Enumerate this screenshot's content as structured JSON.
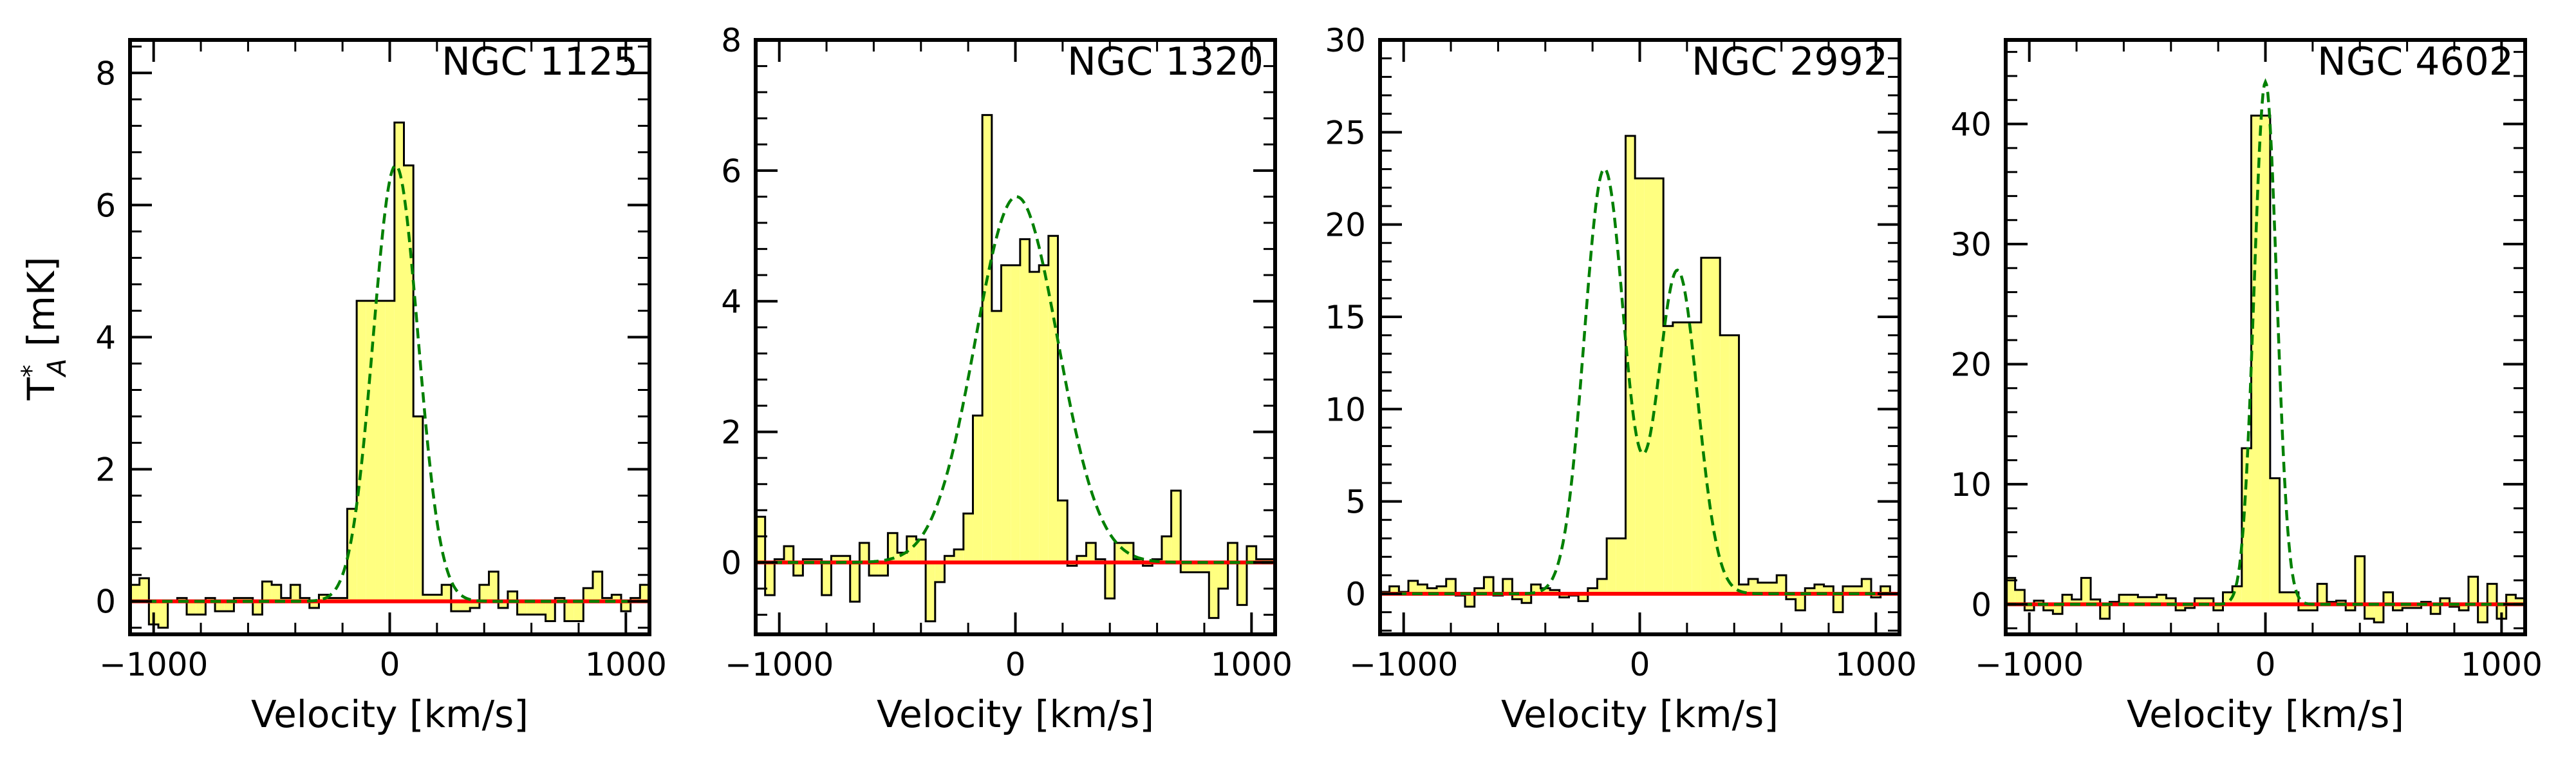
{
  "figure": {
    "ylabel_main": "T",
    "ylabel_sup": "*",
    "ylabel_sub": "A",
    "ylabel_unit": " [mK]"
  },
  "colors": {
    "fill": "#ffff80",
    "edge": "#000000",
    "fit": "#008000",
    "baseline": "#ff0000"
  },
  "chart_data": [
    {
      "type": "step-histogram",
      "title": "NGC 1125",
      "xlabel": "Velocity [km/s]",
      "xlim": [
        -1100,
        1100
      ],
      "ylim": [
        -0.5,
        8.5
      ],
      "xticks": [
        -1000,
        0,
        1000
      ],
      "xtick_labels": [
        "−1000",
        "0",
        "1000"
      ],
      "yticks": [
        0,
        2,
        4,
        6,
        8
      ],
      "ytick_labels": [
        "0",
        "2",
        "4",
        "6",
        "8"
      ],
      "bin_start": -1100,
      "bin_width": 40,
      "values": [
        0.25,
        0.35,
        -0.35,
        -0.4,
        0,
        0.05,
        -0.2,
        -0.2,
        0.05,
        -0.15,
        -0.15,
        0.05,
        0.05,
        -0.2,
        0.3,
        0.25,
        0.05,
        0.25,
        0.05,
        -0.1,
        0.1,
        0.05,
        0.05,
        1.4,
        4.55,
        4.55,
        4.55,
        4.55,
        7.25,
        6.6,
        2.8,
        0.1,
        0.1,
        0.25,
        -0.15,
        -0.15,
        -0.1,
        0.25,
        0.45,
        -0.1,
        0.15,
        -0.2,
        -0.2,
        -0.2,
        -0.3,
        0.05,
        -0.3,
        -0.3,
        0.2,
        0.45,
        0.05,
        0.1,
        -0.15,
        0.05,
        0.25
      ],
      "fit": {
        "type": "gaussian",
        "components": [
          {
            "amp": 6.6,
            "center": 25,
            "sigma": 95
          }
        ]
      }
    },
    {
      "type": "step-histogram",
      "title": "NGC 1320",
      "xlabel": "Velocity [km/s]",
      "xlim": [
        -1100,
        1100
      ],
      "ylim": [
        -1.1,
        8
      ],
      "xticks": [
        -1000,
        0,
        1000
      ],
      "xtick_labels": [
        "−1000",
        "0",
        "1000"
      ],
      "yticks": [
        0,
        2,
        4,
        6,
        8
      ],
      "ytick_labels": [
        "0",
        "2",
        "4",
        "6",
        "8"
      ],
      "bin_start": -1100,
      "bin_width": 40,
      "values": [
        0.7,
        -0.5,
        0.05,
        0.25,
        -0.2,
        0.05,
        0.05,
        -0.5,
        0.1,
        0.1,
        -0.6,
        0.3,
        -0.2,
        -0.2,
        0.45,
        0.15,
        0.4,
        0.35,
        -0.9,
        -0.3,
        0.1,
        0.2,
        0.75,
        2.25,
        6.85,
        3.85,
        4.55,
        4.55,
        4.95,
        4.45,
        4.55,
        5.0,
        0.95,
        -0.05,
        0.1,
        0.3,
        0.05,
        -0.55,
        0.3,
        0.3,
        0.05,
        -0.05,
        0.05,
        0.4,
        1.1,
        -0.15,
        -0.15,
        -0.15,
        -0.85,
        -0.4,
        0.3,
        -0.65,
        0.25,
        0.05,
        0.05
      ],
      "fit": {
        "type": "gaussian",
        "components": [
          {
            "amp": 5.6,
            "center": 5,
            "sigma": 175
          }
        ]
      }
    },
    {
      "type": "step-histogram",
      "title": "NGC 2992",
      "xlabel": "Velocity [km/s]",
      "xlim": [
        -1100,
        1100
      ],
      "ylim": [
        -2.2,
        30
      ],
      "xticks": [
        -1000,
        0,
        1000
      ],
      "xtick_labels": [
        "−1000",
        "0",
        "1000"
      ],
      "yticks": [
        0,
        5,
        10,
        15,
        20,
        25,
        30
      ],
      "ytick_labels": [
        "0",
        "5",
        "10",
        "15",
        "20",
        "25",
        "30"
      ],
      "bin_start": -1100,
      "bin_width": 40,
      "values": [
        0.1,
        0.4,
        0.1,
        0.7,
        0.5,
        0.3,
        0.4,
        0.8,
        -0.1,
        -0.7,
        0.3,
        0.9,
        -0.1,
        0.8,
        -0.3,
        -0.5,
        0.5,
        0.3,
        0.2,
        -0.2,
        -0.1,
        -0.4,
        0.3,
        0.8,
        3.0,
        3.0,
        24.8,
        22.5,
        22.5,
        22.5,
        14.5,
        14.7,
        14.7,
        14.7,
        18.2,
        18.2,
        14.0,
        14.0,
        0.5,
        0.8,
        0.6,
        0.6,
        1.0,
        -0.3,
        -0.9,
        0.3,
        0.5,
        0.4,
        -1.0,
        0.4,
        0.4,
        0.8,
        -0.2,
        0.4,
        0.0
      ],
      "fit": {
        "type": "gaussian",
        "components": [
          {
            "amp": 23.0,
            "center": -150,
            "sigma": 85
          },
          {
            "amp": 17.5,
            "center": 160,
            "sigma": 85
          }
        ]
      }
    },
    {
      "type": "step-histogram",
      "title": "NGC 4602",
      "xlabel": "Velocity [km/s]",
      "xlim": [
        -1100,
        1100
      ],
      "ylim": [
        -2.5,
        47
      ],
      "xticks": [
        -1000,
        0,
        1000
      ],
      "xtick_labels": [
        "−1000",
        "0",
        "1000"
      ],
      "yticks": [
        0,
        10,
        20,
        30,
        40
      ],
      "ytick_labels": [
        "0",
        "10",
        "20",
        "30",
        "40"
      ],
      "bin_start": -1100,
      "bin_width": 40,
      "values": [
        2.2,
        1.2,
        -0.5,
        0.3,
        -0.5,
        -0.8,
        0.8,
        0.4,
        2.2,
        0.4,
        -1.2,
        0.2,
        0.8,
        0.8,
        0.6,
        0.6,
        0.8,
        0.5,
        -0.5,
        -0.3,
        0.5,
        0.5,
        -0.5,
        1.0,
        1.5,
        13.0,
        40.7,
        40.7,
        10.5,
        1.0,
        1.0,
        -0.5,
        -0.5,
        1.7,
        0.2,
        0.3,
        -0.5,
        4.0,
        -1.2,
        -1.5,
        1.0,
        -0.5,
        -0.3,
        -0.3,
        0.2,
        -0.8,
        0.5,
        -0.2,
        -0.5,
        2.3,
        -1.5,
        1.7,
        -1.2,
        0.8,
        0.5
      ],
      "fit": {
        "type": "gaussian",
        "components": [
          {
            "amp": 43.5,
            "center": 0,
            "sigma": 48
          }
        ]
      }
    }
  ]
}
